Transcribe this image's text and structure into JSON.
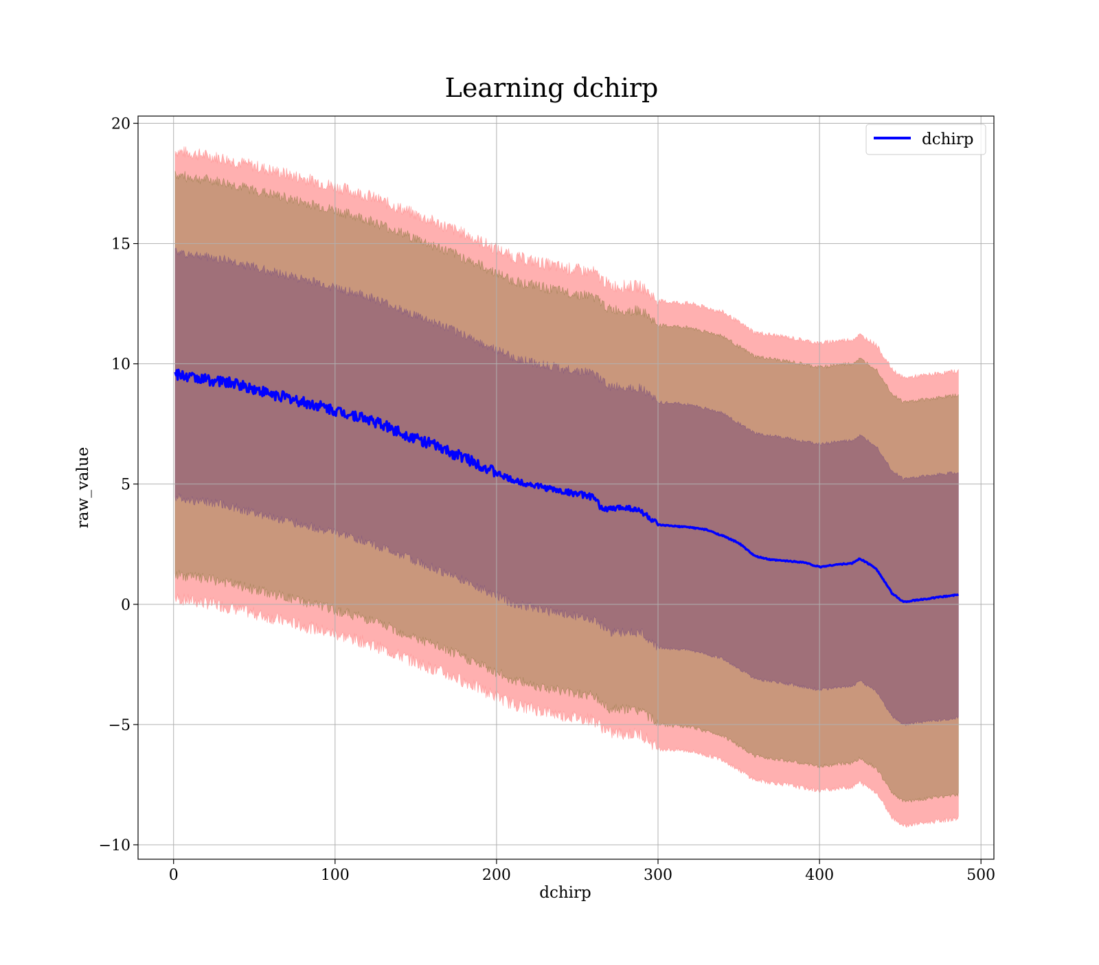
{
  "chart_data": {
    "type": "area",
    "title": "Learning dchirp",
    "xlabel": "dchirp",
    "ylabel": "raw_value",
    "xlim": [
      -22,
      508
    ],
    "ylim": [
      -10.6,
      20.3
    ],
    "xticks": [
      0,
      100,
      200,
      300,
      400,
      500
    ],
    "yticks": [
      -10,
      -5,
      0,
      5,
      10,
      15,
      20
    ],
    "xtick_labels": [
      "0",
      "100",
      "200",
      "300",
      "400",
      "500"
    ],
    "ytick_labels": [
      "−10",
      "−5",
      "0",
      "5",
      "10",
      "15",
      "20"
    ],
    "grid": true,
    "legend": {
      "position": "top-right",
      "entries": [
        "dchirp"
      ]
    },
    "series": [
      {
        "name": "dchirp",
        "kind": "line",
        "color": "#0000ff",
        "x": [
          1,
          10,
          20,
          30,
          40,
          50,
          60,
          70,
          80,
          90,
          100,
          110,
          120,
          130,
          140,
          150,
          160,
          170,
          180,
          190,
          200,
          210,
          220,
          230,
          240,
          250,
          260,
          265,
          270,
          280,
          290,
          300,
          310,
          320,
          330,
          340,
          350,
          360,
          370,
          380,
          390,
          400,
          410,
          420,
          425,
          435,
          445,
          452,
          486
        ],
        "y": [
          9.55,
          9.45,
          9.35,
          9.25,
          9.15,
          8.95,
          8.75,
          8.6,
          8.4,
          8.25,
          8.05,
          7.9,
          7.7,
          7.45,
          7.15,
          6.9,
          6.65,
          6.35,
          6.1,
          5.8,
          5.45,
          5.15,
          5.0,
          4.85,
          4.7,
          4.6,
          4.45,
          4.0,
          3.95,
          4.05,
          3.85,
          3.3,
          3.25,
          3.2,
          3.1,
          2.85,
          2.55,
          2.0,
          1.85,
          1.8,
          1.75,
          1.55,
          1.65,
          1.7,
          1.9,
          1.5,
          0.45,
          0.1,
          0.4
        ]
      }
    ],
    "bands": {
      "x": [
        1,
        30,
        60,
        90,
        120,
        150,
        180,
        210,
        240,
        260,
        270,
        290,
        300,
        320,
        340,
        360,
        380,
        400,
        410,
        420,
        425,
        435,
        445,
        452,
        486
      ],
      "center": [
        9.55,
        9.25,
        8.75,
        8.25,
        7.7,
        6.9,
        6.1,
        5.15,
        4.7,
        4.5,
        3.95,
        3.9,
        3.3,
        3.2,
        2.85,
        2.0,
        1.8,
        1.55,
        1.65,
        1.7,
        1.9,
        1.5,
        0.45,
        0.1,
        0.4
      ],
      "inner_halfwidth": [
        5.1,
        5.1,
        5.1,
        5.1,
        5.1,
        5.1,
        5.1,
        5.1,
        5.1,
        5.1,
        5.1,
        5.1,
        5.1,
        5.1,
        5.1,
        5.1,
        5.1,
        5.1,
        5.1,
        5.1,
        5.1,
        5.1,
        5.1,
        5.1,
        5.1
      ],
      "middle_halfwidth": [
        8.3,
        8.3,
        8.3,
        8.3,
        8.3,
        8.3,
        8.3,
        8.3,
        8.3,
        8.3,
        8.3,
        8.3,
        8.3,
        8.3,
        8.3,
        8.3,
        8.3,
        8.3,
        8.3,
        8.3,
        8.3,
        8.3,
        8.3,
        8.3,
        8.3
      ],
      "outer_halfwidth": [
        9.3,
        9.3,
        9.3,
        9.3,
        9.3,
        9.3,
        9.3,
        9.3,
        9.3,
        9.3,
        9.3,
        9.3,
        9.3,
        9.3,
        9.3,
        9.3,
        9.3,
        9.3,
        9.3,
        9.3,
        9.3,
        9.3,
        9.3,
        9.3,
        9.3
      ],
      "outer_color": "#ffb0b0",
      "middle_color": "#c9977c",
      "inner_color": "#a07079"
    }
  }
}
